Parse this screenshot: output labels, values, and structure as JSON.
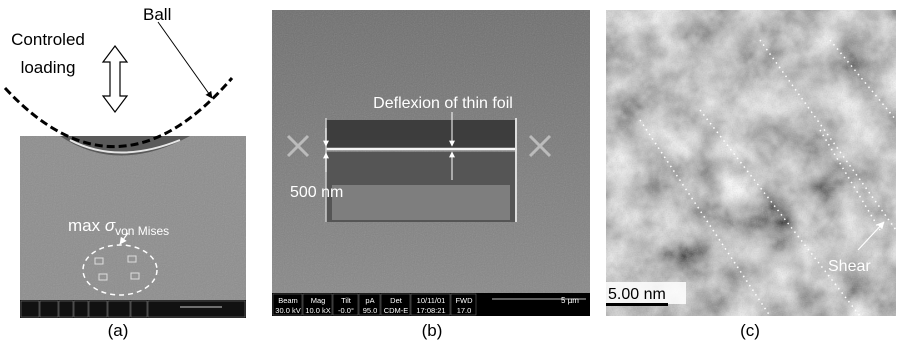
{
  "panel_a": {
    "label": "(a)",
    "ball": "Ball",
    "loading_line1": "Controled",
    "loading_line2": "loading",
    "stress_prefix": "max",
    "stress_symbol": "σ",
    "stress_subscript": "von Mises"
  },
  "panel_b": {
    "label": "(b)",
    "annotation": "Deflexion of thin foil",
    "scale": "500 nm",
    "info_bar": [
      {
        "key": "Beam",
        "value": "30.0 kV"
      },
      {
        "key": "Mag",
        "value": "10.0 kX"
      },
      {
        "key": "Tilt",
        "value": "-0.0°"
      },
      {
        "key": "pA",
        "value": "95.0"
      },
      {
        "key": "Det",
        "value": "CDM-E"
      },
      {
        "key": "10/11/01",
        "value": "17:08:21"
      },
      {
        "key": "FWD",
        "value": "17.0"
      }
    ],
    "scale_bar": "5 µm"
  },
  "panel_c": {
    "label": "(c)",
    "scale": "5.00 nm",
    "annotation": "Shear"
  }
}
